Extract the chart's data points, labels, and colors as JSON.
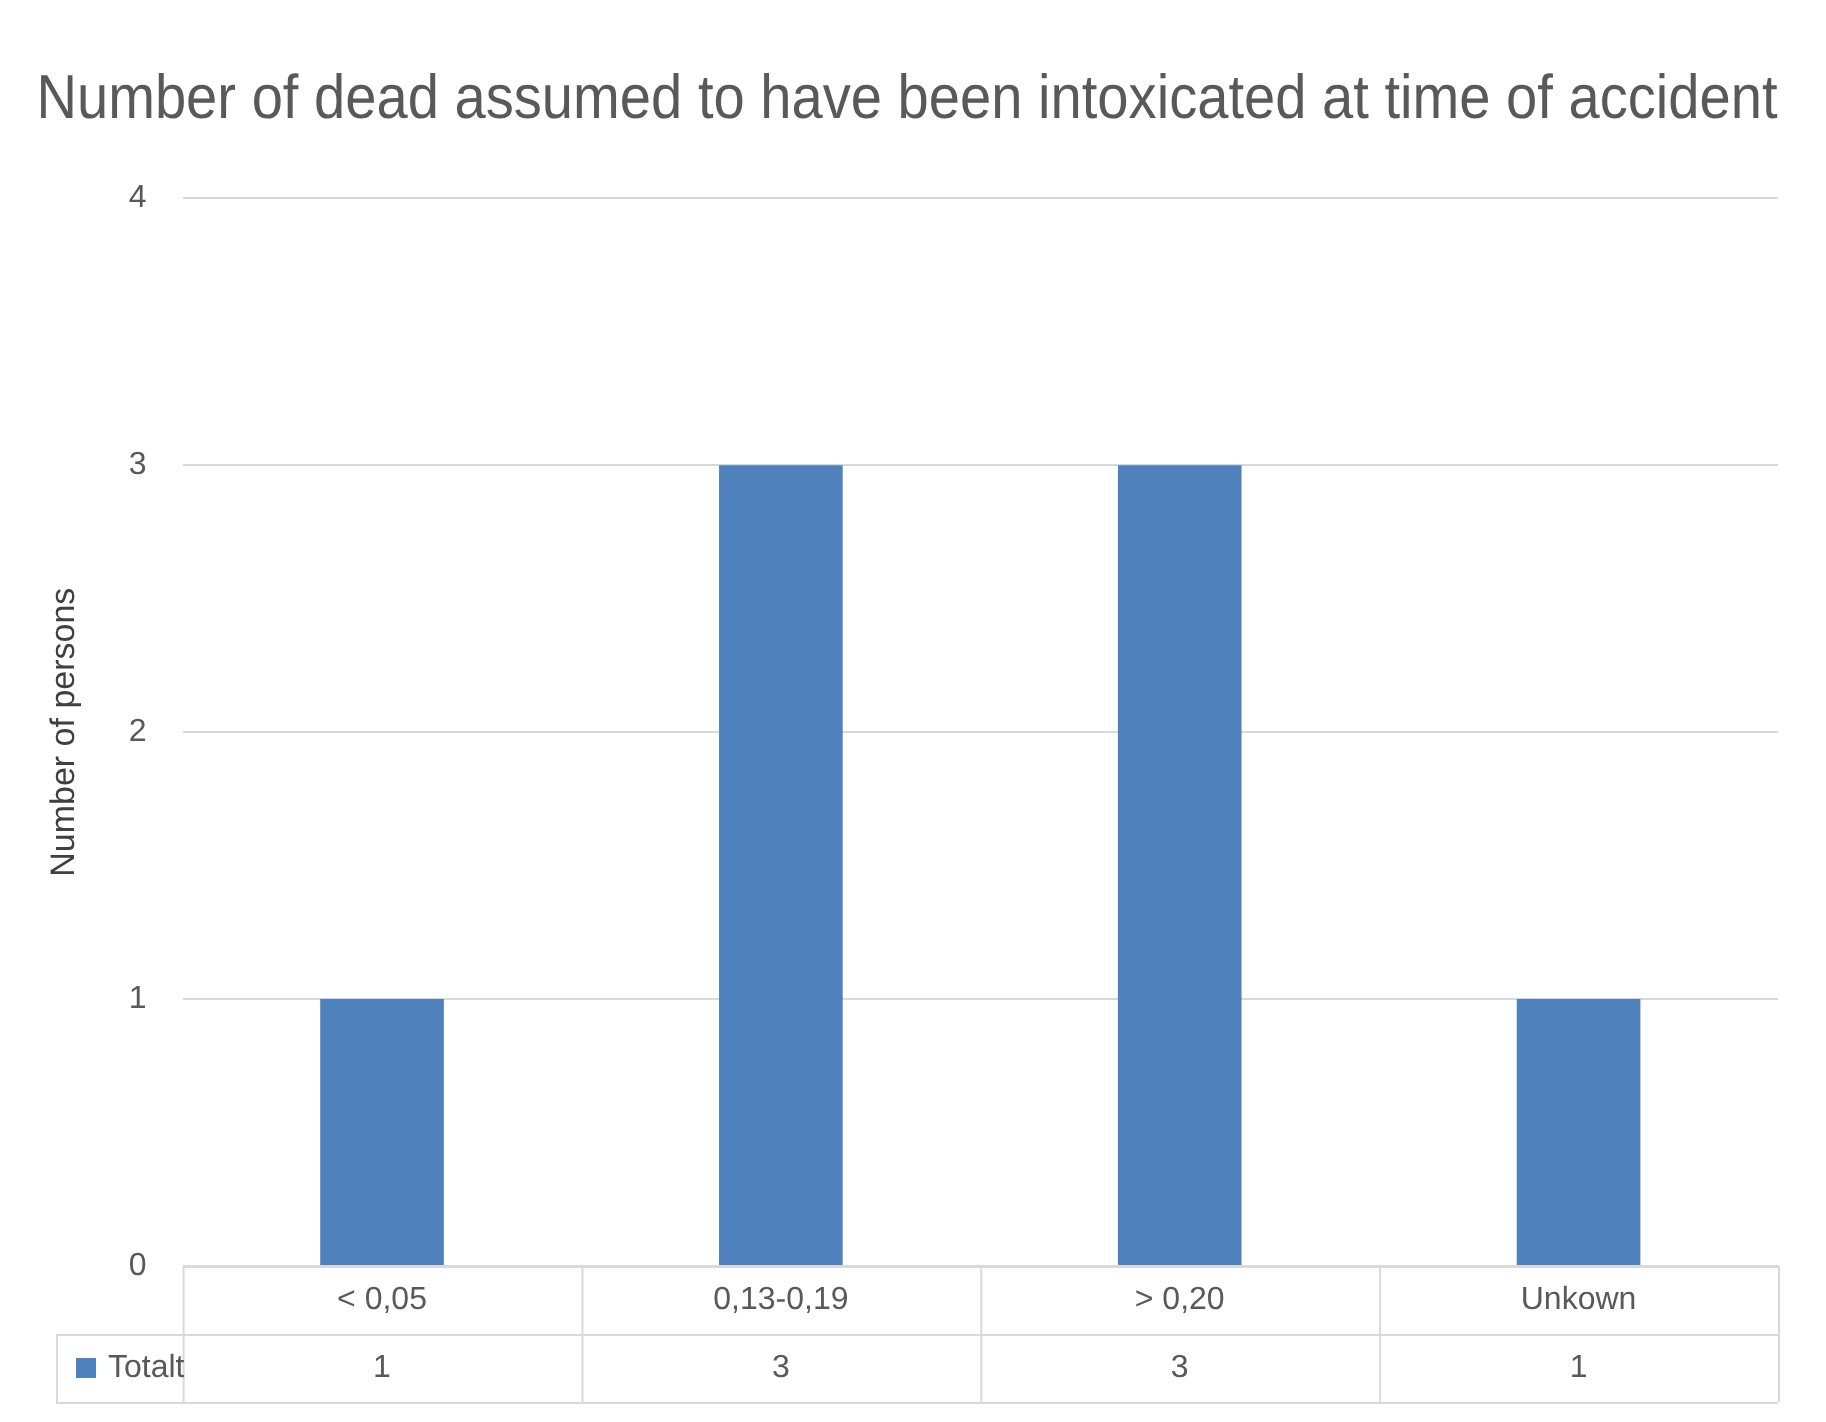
{
  "chart_data": {
    "type": "bar",
    "title": "Number of dead assumed to have been intoxicated at time of accident",
    "ylabel": "Number of persons",
    "categories": [
      "< 0,05",
      "0,13-0,19",
      "> 0,20",
      "Unkown"
    ],
    "series": [
      {
        "name": "Totalt",
        "color": "#4f81bd",
        "values": [
          1,
          3,
          3,
          1
        ]
      }
    ],
    "ylim": [
      0,
      4
    ],
    "yticks": [
      0,
      1,
      2,
      3,
      4
    ],
    "grid": "y",
    "legend": "bottom",
    "data_labels": true
  }
}
